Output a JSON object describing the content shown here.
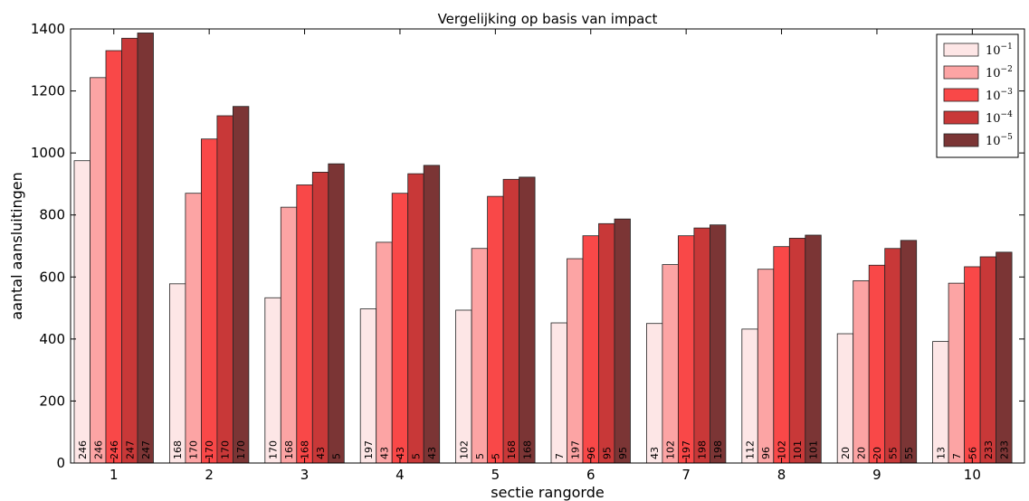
{
  "chart_data": {
    "type": "bar",
    "title": "Vergelijking op basis van impact",
    "xlabel": "sectie rangorde",
    "ylabel": "aantal aansluitingen",
    "ylim": [
      0,
      1400
    ],
    "yticks": [
      0,
      200,
      400,
      600,
      800,
      1000,
      1200,
      1400
    ],
    "categories": [
      "1",
      "2",
      "3",
      "4",
      "5",
      "6",
      "7",
      "8",
      "9",
      "10"
    ],
    "legend_position": "top-right",
    "grid": false,
    "series": [
      {
        "name": "10",
        "exponent": "−1",
        "color": "#fde6e6",
        "values": [
          975,
          578,
          533,
          497,
          493,
          452,
          450,
          432,
          417,
          392
        ],
        "labels": [
          "246",
          "168",
          "170",
          "197",
          "102",
          "7",
          "43",
          "112",
          "20",
          "13"
        ]
      },
      {
        "name": "10",
        "exponent": "−2",
        "color": "#fca4a4",
        "values": [
          1243,
          870,
          825,
          712,
          692,
          659,
          640,
          625,
          588,
          580
        ],
        "labels": [
          "246",
          "170",
          "168",
          "43",
          "5",
          "197",
          "102",
          "96",
          "20",
          "7"
        ]
      },
      {
        "name": "10",
        "exponent": "−3",
        "color": "#f94848",
        "values": [
          1330,
          1045,
          897,
          870,
          860,
          733,
          733,
          698,
          638,
          633
        ],
        "labels": [
          "246",
          "170",
          "168",
          "43",
          "5",
          "96",
          "197",
          "102",
          "20",
          "56"
        ]
      },
      {
        "name": "10",
        "exponent": "−4",
        "color": "#c83838",
        "values": [
          1370,
          1120,
          938,
          933,
          915,
          772,
          758,
          725,
          692,
          665
        ],
        "labels": [
          "247",
          "170",
          "43",
          "5",
          "168",
          "95",
          "198",
          "101",
          "55",
          "233"
        ]
      },
      {
        "name": "10",
        "exponent": "−5",
        "color": "#7b3535",
        "values": [
          1387,
          1150,
          965,
          960,
          922,
          787,
          768,
          735,
          718,
          680
        ],
        "labels": [
          "247",
          "170",
          "5",
          "43",
          "168",
          "95",
          "198",
          "101",
          "55",
          "233"
        ]
      }
    ]
  }
}
